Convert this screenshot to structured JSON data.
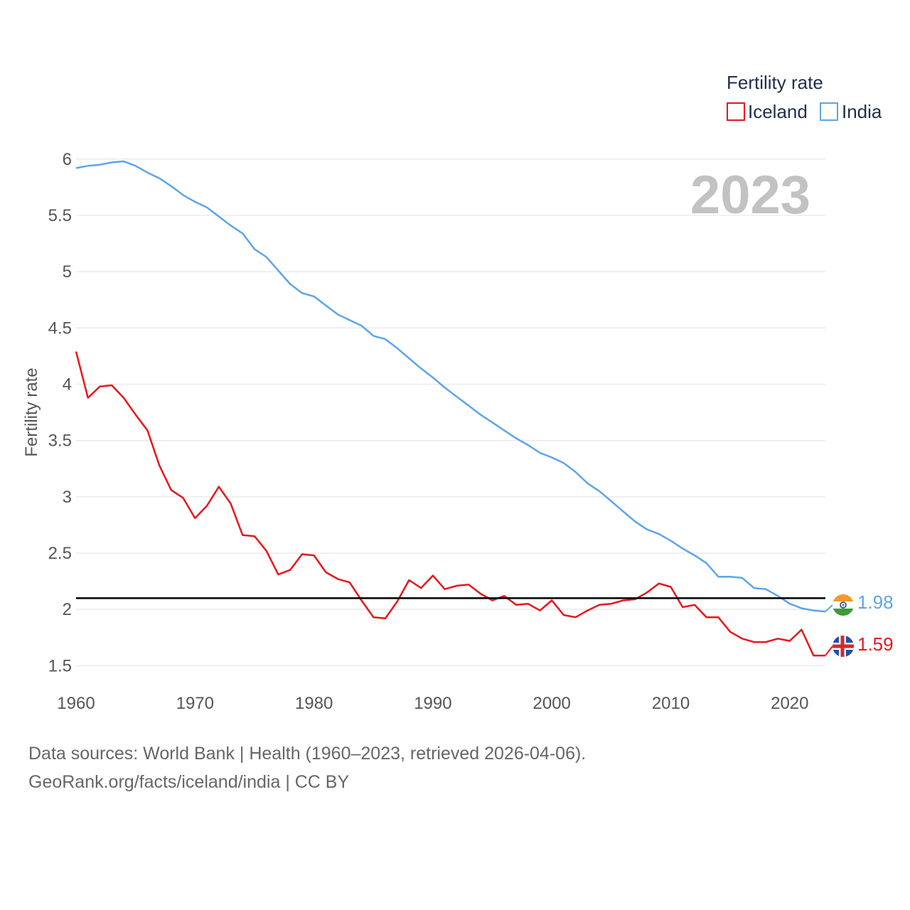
{
  "chart_data": {
    "type": "line",
    "title": "2023",
    "xlabel": "",
    "ylabel": "Fertility rate",
    "xlim": [
      1960,
      2023
    ],
    "ylim": [
      1.3,
      6.15
    ],
    "x_ticks": [
      1960,
      1970,
      1980,
      1990,
      2000,
      2010,
      2020
    ],
    "y_ticks": [
      1.5,
      2,
      2.5,
      3,
      3.5,
      4,
      4.5,
      5,
      5.5,
      6
    ],
    "reference_line": 2.1,
    "legend": {
      "title": "Fertility rate",
      "placement": "top-right"
    },
    "x": [
      1960,
      1961,
      1962,
      1963,
      1964,
      1965,
      1966,
      1967,
      1968,
      1969,
      1970,
      1971,
      1972,
      1973,
      1974,
      1975,
      1976,
      1977,
      1978,
      1979,
      1980,
      1981,
      1982,
      1983,
      1984,
      1985,
      1986,
      1987,
      1988,
      1989,
      1990,
      1991,
      1992,
      1993,
      1994,
      1995,
      1996,
      1997,
      1998,
      1999,
      2000,
      2001,
      2002,
      2003,
      2004,
      2005,
      2006,
      2007,
      2008,
      2009,
      2010,
      2011,
      2012,
      2013,
      2014,
      2015,
      2016,
      2017,
      2018,
      2019,
      2020,
      2021,
      2022,
      2023
    ],
    "series": [
      {
        "name": "Iceland",
        "color": "#e8161b",
        "end_label": "1.59",
        "values": [
          4.29,
          3.88,
          3.98,
          3.99,
          3.88,
          3.73,
          3.59,
          3.28,
          3.06,
          2.99,
          2.81,
          2.92,
          3.09,
          2.94,
          2.66,
          2.65,
          2.52,
          2.31,
          2.35,
          2.49,
          2.48,
          2.33,
          2.27,
          2.24,
          2.08,
          1.93,
          1.92,
          2.07,
          2.26,
          2.19,
          2.3,
          2.18,
          2.21,
          2.22,
          2.14,
          2.08,
          2.12,
          2.04,
          2.05,
          1.99,
          2.08,
          1.95,
          1.93,
          1.99,
          2.04,
          2.05,
          2.08,
          2.09,
          2.15,
          2.23,
          2.2,
          2.02,
          2.04,
          1.93,
          1.93,
          1.8,
          1.74,
          1.71,
          1.71,
          1.74,
          1.72,
          1.82,
          1.59,
          1.59
        ]
      },
      {
        "name": "India",
        "color": "#5fa4e8",
        "end_label": "1.98",
        "values": [
          5.92,
          5.94,
          5.95,
          5.97,
          5.98,
          5.94,
          5.88,
          5.83,
          5.76,
          5.68,
          5.62,
          5.57,
          5.49,
          5.41,
          5.34,
          5.2,
          5.13,
          5.01,
          4.89,
          4.81,
          4.78,
          4.7,
          4.62,
          4.57,
          4.52,
          4.43,
          4.4,
          4.32,
          4.23,
          4.14,
          4.06,
          3.97,
          3.89,
          3.81,
          3.73,
          3.66,
          3.59,
          3.52,
          3.46,
          3.39,
          3.35,
          3.3,
          3.22,
          3.12,
          3.05,
          2.96,
          2.87,
          2.78,
          2.71,
          2.67,
          2.61,
          2.54,
          2.48,
          2.41,
          2.29,
          2.29,
          2.28,
          2.19,
          2.18,
          2.12,
          2.05,
          2.01,
          1.99,
          1.98
        ]
      }
    ]
  },
  "source": {
    "line1": "Data sources: World Bank | Health (1960–2023, retrieved 2026-04-06).",
    "line2": "GeoRank.org/facts/iceland/india | CC BY"
  }
}
